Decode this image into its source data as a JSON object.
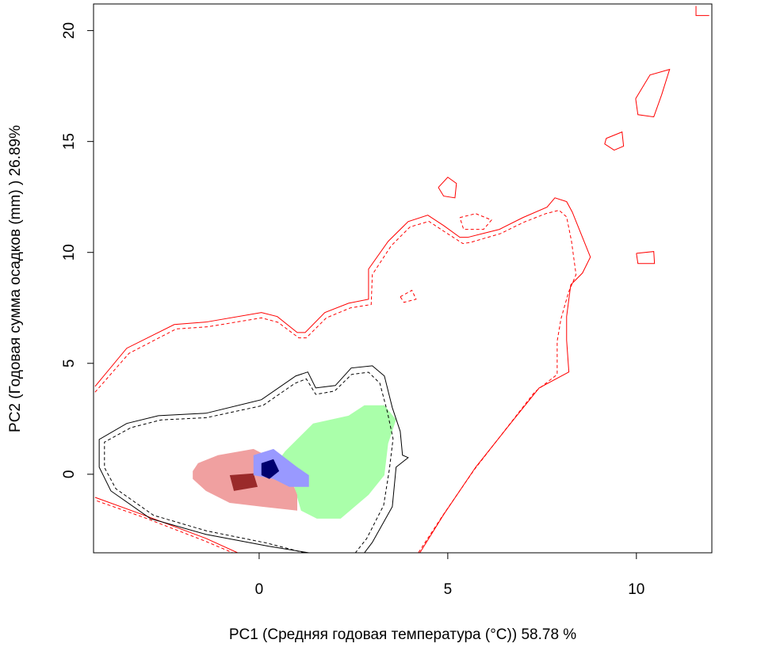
{
  "chart_data": {
    "type": "contour",
    "x_label": "PC1 (Средняя годовая температура (°C)) 58.78 %",
    "y_label": "PC2 (Годовая сумма осадков  (mm) ) 26.89%",
    "xlim": [
      -4.39,
      12.0
    ],
    "ylim": [
      -3.54,
      21.2
    ],
    "xticks": [
      0,
      5,
      10
    ],
    "yticks": [
      0,
      5,
      10,
      15,
      20
    ],
    "series": [
      {
        "fill": "#aaffaa",
        "x": [
          0.69,
          1.43,
          2.37,
          2.79,
          3.32,
          3.63,
          3.42,
          3.32,
          2.9,
          2.16,
          1.53,
          1.11,
          0.9,
          0.38
        ],
        "y": [
          1.04,
          2.29,
          2.64,
          3.11,
          3.11,
          2.46,
          1.39,
          -0.04,
          -0.93,
          -2.0,
          -2.0,
          -1.64,
          -0.39,
          0.32
        ]
      },
      {
        "fill": "#f0a0a0",
        "x": [
          -1.76,
          -1.62,
          -1.09,
          -0.15,
          0.38,
          0.8,
          1.01,
          1.01,
          0.06,
          -0.78,
          -1.41,
          -1.76
        ],
        "y": [
          0.14,
          0.5,
          0.86,
          1.14,
          0.68,
          -0.04,
          -0.93,
          -1.64,
          -1.46,
          -1.29,
          -0.75,
          -0.21
        ]
      },
      {
        "fill": "#9a2a2a",
        "x": [
          -0.78,
          -0.15,
          -0.04,
          -0.67
        ],
        "y": [
          -0.04,
          0.04,
          -0.57,
          -0.75
        ]
      },
      {
        "fill": "#9999ff",
        "x": [
          -0.15,
          0.38,
          1.01,
          1.32,
          1.32,
          0.8,
          0.38,
          -0.15
        ],
        "y": [
          0.86,
          1.14,
          0.32,
          -0.04,
          -0.57,
          -0.57,
          -0.21,
          -0.04
        ]
      },
      {
        "fill": "#00006e",
        "x": [
          0.06,
          0.38,
          0.53,
          0.27,
          0.06
        ],
        "y": [
          0.5,
          0.68,
          0.14,
          -0.21,
          -0.04
        ]
      },
      {
        "stroke": "#ff0000",
        "dashed": false,
        "x": [
          -4.35,
          -3.51,
          -2.25,
          -1.41,
          0.06,
          0.48,
          1.01,
          1.22,
          1.74,
          2.37,
          2.9,
          2.9,
          3.42,
          3.95,
          4.47,
          4.89,
          5.32,
          5.53,
          5.95,
          6.37,
          6.99,
          7.63,
          7.84,
          8.15,
          8.3,
          8.57,
          8.78,
          8.57,
          8.26,
          8.15,
          8.15,
          8.21,
          7.42,
          6.58,
          5.74,
          4.89,
          4.26
        ],
        "y": [
          3.96,
          5.68,
          6.75,
          6.86,
          7.29,
          7.11,
          6.39,
          6.39,
          7.29,
          7.71,
          7.89,
          9.25,
          10.5,
          11.39,
          11.68,
          11.21,
          10.68,
          10.68,
          10.86,
          11.04,
          11.57,
          12.04,
          12.46,
          12.29,
          11.82,
          10.68,
          9.79,
          9.07,
          8.54,
          7.11,
          6.04,
          4.61,
          3.89,
          2.11,
          0.32,
          -1.82,
          -3.54
        ]
      },
      {
        "stroke": "#ff0000",
        "dashed": true,
        "x": [
          -4.35,
          -3.45,
          -2.2,
          -1.35,
          0.06,
          0.5,
          1.05,
          1.25,
          1.78,
          2.42,
          2.97,
          3.0,
          3.5,
          4.0,
          4.5,
          4.9,
          5.4,
          5.6,
          6.0,
          6.4,
          7.0,
          7.6,
          7.95,
          8.15,
          8.28,
          8.4,
          8.2,
          8.0,
          7.9,
          7.9,
          7.9,
          7.3,
          6.5,
          5.7,
          4.85,
          4.22
        ],
        "y": [
          3.7,
          5.45,
          6.55,
          6.65,
          7.05,
          6.85,
          6.15,
          6.15,
          7.05,
          7.5,
          7.65,
          9.0,
          10.3,
          11.15,
          11.4,
          10.95,
          10.4,
          10.45,
          10.65,
          10.85,
          11.35,
          11.75,
          11.9,
          11.6,
          10.5,
          9.0,
          8.2,
          7.0,
          6.0,
          5.0,
          4.5,
          3.7,
          1.95,
          0.2,
          -1.9,
          -3.54
        ]
      },
      {
        "stroke": "#ff0000",
        "dashed": true,
        "x": [
          5.32,
          5.74,
          6.16,
          5.95,
          5.42,
          5.32
        ],
        "y": [
          11.57,
          11.75,
          11.46,
          11.04,
          11.04,
          11.57
        ]
      },
      {
        "stroke": "#ff0000",
        "dashed": true,
        "x": [
          3.74,
          4.05,
          4.16,
          3.84,
          3.74
        ],
        "y": [
          8.0,
          8.29,
          7.89,
          7.75,
          8.0
        ]
      },
      {
        "stroke": "#ff0000",
        "dashed": false,
        "x": [
          -4.35,
          -3.09,
          -1.41,
          -0.57
        ],
        "y": [
          -1.04,
          -1.82,
          -2.89,
          -3.54
        ]
      },
      {
        "stroke": "#ff0000",
        "dashed": true,
        "x": [
          -4.3,
          -3.05,
          -1.45,
          -0.7
        ],
        "y": [
          -1.2,
          -1.95,
          -3.0,
          -3.54
        ]
      },
      {
        "stroke": "#ff0000",
        "dashed": false,
        "x": [
          4.75,
          5.0,
          5.23,
          5.19,
          4.89,
          4.75
        ],
        "y": [
          12.93,
          13.39,
          13.11,
          12.46,
          12.54,
          12.93
        ]
      },
      {
        "stroke": "#ff0000",
        "dashed": false,
        "x": [
          9.2,
          9.62,
          9.66,
          9.41,
          9.16,
          9.2
        ],
        "y": [
          15.14,
          15.43,
          14.79,
          14.61,
          14.89,
          15.14
        ]
      },
      {
        "stroke": "#ff0000",
        "dashed": false,
        "x": [
          9.98,
          10.36,
          10.88,
          10.67,
          10.46,
          10.04,
          9.98
        ],
        "y": [
          16.93,
          18.0,
          18.25,
          17.11,
          16.11,
          16.21,
          16.93
        ]
      },
      {
        "stroke": "#ff0000",
        "dashed": false,
        "x": [
          10.0,
          10.46,
          10.48,
          10.04,
          10.0
        ],
        "y": [
          9.96,
          10.04,
          9.5,
          9.5,
          9.96
        ]
      },
      {
        "stroke": "#ff0000",
        "dashed": false,
        "x": [
          11.58,
          11.58,
          11.93
        ],
        "y": [
          21.11,
          20.68,
          20.68
        ]
      },
      {
        "stroke": "#000000",
        "dashed": false,
        "x": [
          1.32,
          0.27,
          -1.41,
          -2.88,
          -3.93,
          -4.24,
          -4.24,
          -3.51,
          -2.67,
          -1.41,
          0.06,
          0.97,
          1.29,
          1.5,
          2.02,
          2.44,
          3.0,
          3.32,
          3.53,
          3.74,
          3.8,
          3.95,
          3.63,
          3.53,
          3.0,
          2.79
        ],
        "y": [
          -3.54,
          -3.25,
          -2.71,
          -2.0,
          -0.75,
          0.32,
          1.57,
          2.29,
          2.64,
          2.75,
          3.36,
          4.43,
          4.61,
          3.89,
          4.0,
          4.79,
          4.89,
          4.43,
          3.0,
          1.93,
          0.86,
          0.75,
          0.32,
          -1.46,
          -3.07,
          -3.54
        ]
      },
      {
        "stroke": "#000000",
        "dashed": true,
        "x": [
          1.2,
          0.2,
          -1.4,
          -2.8,
          -3.8,
          -4.1,
          -4.1,
          -3.4,
          -2.6,
          -1.4,
          0.1,
          0.95,
          1.25,
          1.5,
          2.0,
          2.45,
          2.9,
          3.2,
          3.4,
          3.55,
          3.45,
          3.3,
          2.85,
          2.55
        ],
        "y": [
          -3.54,
          -3.1,
          -2.55,
          -1.85,
          -0.65,
          0.3,
          1.45,
          2.1,
          2.45,
          2.55,
          3.1,
          4.1,
          4.3,
          3.6,
          3.75,
          4.5,
          4.6,
          4.1,
          2.8,
          1.6,
          0.2,
          -1.4,
          -2.9,
          -3.54
        ]
      }
    ]
  }
}
